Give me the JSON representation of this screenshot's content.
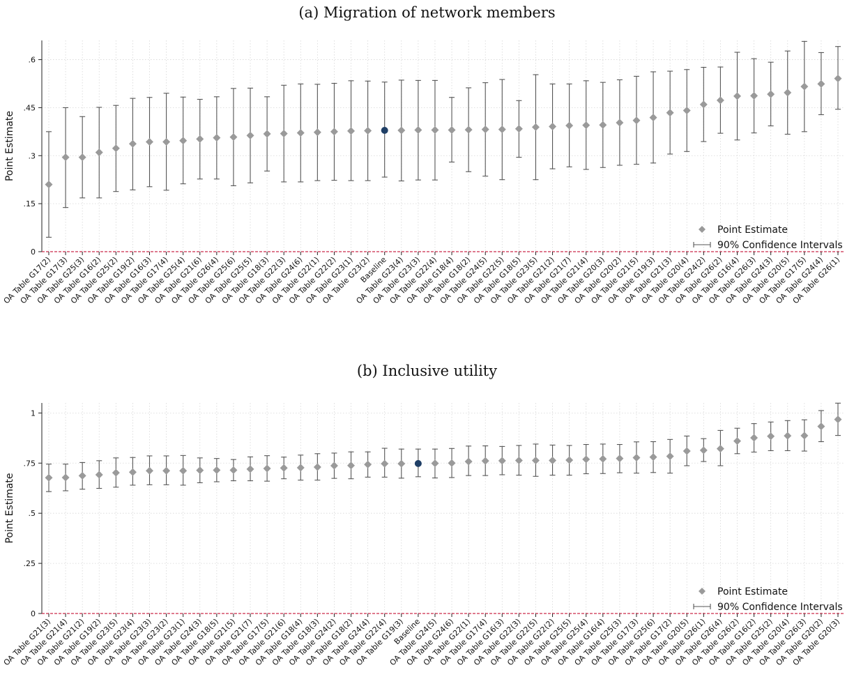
{
  "colors": {
    "point": "#9a9a9a",
    "baseline": "#1f3f66",
    "ci": "#555555",
    "zero": "#cc2b4a",
    "grid": "#d6d6d6"
  },
  "chart_data": [
    {
      "type": "scatter",
      "title": "(a) Migration of network members",
      "ylabel": "Point Estimate",
      "ylim": [
        0,
        0.66
      ],
      "yticks": [
        0,
        0.15,
        0.3,
        0.45,
        0.6
      ],
      "ytick_labels": [
        "0",
        ".15",
        ".3",
        ".45",
        ".6"
      ],
      "grid": true,
      "legend": {
        "placement": "bottom-right",
        "items": [
          "Point Estimate",
          "90% Confidence Intervals"
        ]
      },
      "categories": [
        "OA Table G17(2)",
        "OA Table G17(3)",
        "OA Table G25(3)",
        "OA Table G16(2)",
        "OA Table G25(2)",
        "OA Table G19(2)",
        "OA Table G16(3)",
        "OA Table G17(4)",
        "OA Table G25(4)",
        "OA Table G21(6)",
        "OA Table G26(4)",
        "OA Table G25(6)",
        "OA Table G25(5)",
        "OA Table G18(3)",
        "OA Table G22(3)",
        "OA Table G24(6)",
        "OA Table G22(1)",
        "OA Table G22(2)",
        "OA Table G23(1)",
        "OA Table G23(2)",
        "Baseline",
        "OA Table G23(4)",
        "OA Table G23(3)",
        "OA Table G22(4)",
        "OA Table G18(4)",
        "OA Table G18(2)",
        "OA Table G24(5)",
        "OA Table G22(5)",
        "OA Table G18(5)",
        "OA Table G23(5)",
        "OA Table G21(2)",
        "OA Table G21(7)",
        "OA Table G21(4)",
        "OA Table G20(3)",
        "OA Table G20(2)",
        "OA Table G21(5)",
        "OA Table G19(3)",
        "OA Table G21(3)",
        "OA Table G20(4)",
        "OA Table G24(2)",
        "OA Table G26(2)",
        "OA Table G16(4)",
        "OA Table G26(3)",
        "OA Table G24(3)",
        "OA Table G20(5)",
        "OA Table G17(5)",
        "OA Table G24(4)",
        "OA Table G26(1)"
      ],
      "values": [
        0.21,
        0.295,
        0.295,
        0.31,
        0.323,
        0.337,
        0.343,
        0.343,
        0.347,
        0.352,
        0.356,
        0.358,
        0.363,
        0.368,
        0.369,
        0.371,
        0.373,
        0.375,
        0.377,
        0.378,
        0.379,
        0.379,
        0.38,
        0.38,
        0.38,
        0.381,
        0.382,
        0.382,
        0.384,
        0.389,
        0.391,
        0.394,
        0.395,
        0.396,
        0.403,
        0.41,
        0.419,
        0.434,
        0.441,
        0.46,
        0.473,
        0.486,
        0.487,
        0.492,
        0.497,
        0.516,
        0.524,
        0.541
      ],
      "ci_low": [
        0.045,
        0.138,
        0.168,
        0.168,
        0.188,
        0.193,
        0.203,
        0.192,
        0.212,
        0.227,
        0.227,
        0.206,
        0.215,
        0.252,
        0.218,
        0.218,
        0.222,
        0.223,
        0.222,
        0.222,
        0.233,
        0.221,
        0.224,
        0.224,
        0.28,
        0.25,
        0.236,
        0.225,
        0.295,
        0.225,
        0.259,
        0.265,
        0.257,
        0.263,
        0.27,
        0.273,
        0.277,
        0.305,
        0.313,
        0.344,
        0.37,
        0.349,
        0.371,
        0.393,
        0.367,
        0.375,
        0.428,
        0.445
      ],
      "ci_high": [
        0.375,
        0.45,
        0.422,
        0.451,
        0.457,
        0.479,
        0.482,
        0.495,
        0.483,
        0.476,
        0.484,
        0.51,
        0.511,
        0.484,
        0.52,
        0.524,
        0.523,
        0.526,
        0.534,
        0.533,
        0.53,
        0.536,
        0.535,
        0.535,
        0.482,
        0.512,
        0.528,
        0.538,
        0.472,
        0.553,
        0.524,
        0.524,
        0.534,
        0.529,
        0.537,
        0.548,
        0.562,
        0.564,
        0.569,
        0.576,
        0.577,
        0.623,
        0.603,
        0.592,
        0.627,
        0.657,
        0.622,
        0.641
      ],
      "highlight": "Baseline"
    },
    {
      "type": "scatter",
      "title": "(b) Inclusive utility",
      "ylabel": "Point Estimate",
      "ylim": [
        0,
        1.05
      ],
      "yticks": [
        0,
        0.25,
        0.5,
        0.75,
        1
      ],
      "ytick_labels": [
        "0",
        ".25",
        ".5",
        ".75",
        "1"
      ],
      "grid": true,
      "legend": {
        "placement": "bottom-right",
        "items": [
          "Point Estimate",
          "90% Confidence Intervals"
        ]
      },
      "categories": [
        "OA Table G21(3)",
        "OA Table G21(4)",
        "OA Table G21(2)",
        "OA Table G19(2)",
        "OA Table G23(5)",
        "OA Table G23(4)",
        "OA Table G23(3)",
        "OA Table G23(2)",
        "OA Table G23(1)",
        "OA Table G24(3)",
        "OA Table G18(5)",
        "OA Table G21(5)",
        "OA Table G21(7)",
        "OA Table G17(5)",
        "OA Table G21(6)",
        "OA Table G18(4)",
        "OA Table G18(3)",
        "OA Table G24(2)",
        "OA Table G18(2)",
        "OA Table G24(4)",
        "OA Table G22(4)",
        "OA Table G19(3)",
        "Baseline",
        "OA Table G24(5)",
        "OA Table G24(6)",
        "OA Table G22(1)",
        "OA Table G17(4)",
        "OA Table G16(3)",
        "OA Table G22(3)",
        "OA Table G22(5)",
        "OA Table G22(2)",
        "OA Table G25(5)",
        "OA Table G25(4)",
        "OA Table G16(4)",
        "OA Table G25(3)",
        "OA Table G17(3)",
        "OA Table G25(6)",
        "OA Table G17(2)",
        "OA Table G20(5)",
        "OA Table G26(1)",
        "OA Table G26(4)",
        "OA Table G26(2)",
        "OA Table G16(2)",
        "OA Table G25(2)",
        "OA Table G20(4)",
        "OA Table G26(3)",
        "OA Table G20(2)",
        "OA Table G20(3)"
      ],
      "values": [
        0.677,
        0.678,
        0.687,
        0.692,
        0.702,
        0.705,
        0.712,
        0.712,
        0.712,
        0.714,
        0.715,
        0.715,
        0.72,
        0.723,
        0.726,
        0.727,
        0.73,
        0.737,
        0.738,
        0.743,
        0.747,
        0.747,
        0.748,
        0.749,
        0.75,
        0.758,
        0.761,
        0.762,
        0.763,
        0.763,
        0.763,
        0.765,
        0.769,
        0.771,
        0.773,
        0.777,
        0.78,
        0.784,
        0.81,
        0.814,
        0.822,
        0.86,
        0.876,
        0.884,
        0.886,
        0.887,
        0.933,
        0.968
      ],
      "ci_low": [
        0.608,
        0.612,
        0.62,
        0.624,
        0.63,
        0.64,
        0.642,
        0.642,
        0.64,
        0.652,
        0.657,
        0.662,
        0.662,
        0.66,
        0.672,
        0.665,
        0.665,
        0.674,
        0.672,
        0.68,
        0.68,
        0.675,
        0.682,
        0.676,
        0.678,
        0.688,
        0.688,
        0.692,
        0.69,
        0.684,
        0.69,
        0.69,
        0.697,
        0.698,
        0.702,
        0.7,
        0.703,
        0.7,
        0.737,
        0.758,
        0.737,
        0.797,
        0.805,
        0.812,
        0.812,
        0.81,
        0.857,
        0.888
      ],
      "ci_high": [
        0.745,
        0.745,
        0.753,
        0.762,
        0.776,
        0.778,
        0.786,
        0.786,
        0.788,
        0.776,
        0.773,
        0.768,
        0.781,
        0.787,
        0.78,
        0.79,
        0.797,
        0.8,
        0.806,
        0.806,
        0.824,
        0.82,
        0.82,
        0.82,
        0.823,
        0.835,
        0.836,
        0.833,
        0.838,
        0.845,
        0.84,
        0.838,
        0.843,
        0.845,
        0.843,
        0.856,
        0.857,
        0.868,
        0.885,
        0.872,
        0.913,
        0.924,
        0.947,
        0.955,
        0.962,
        0.966,
        1.012,
        1.049
      ],
      "highlight": "Baseline"
    }
  ]
}
